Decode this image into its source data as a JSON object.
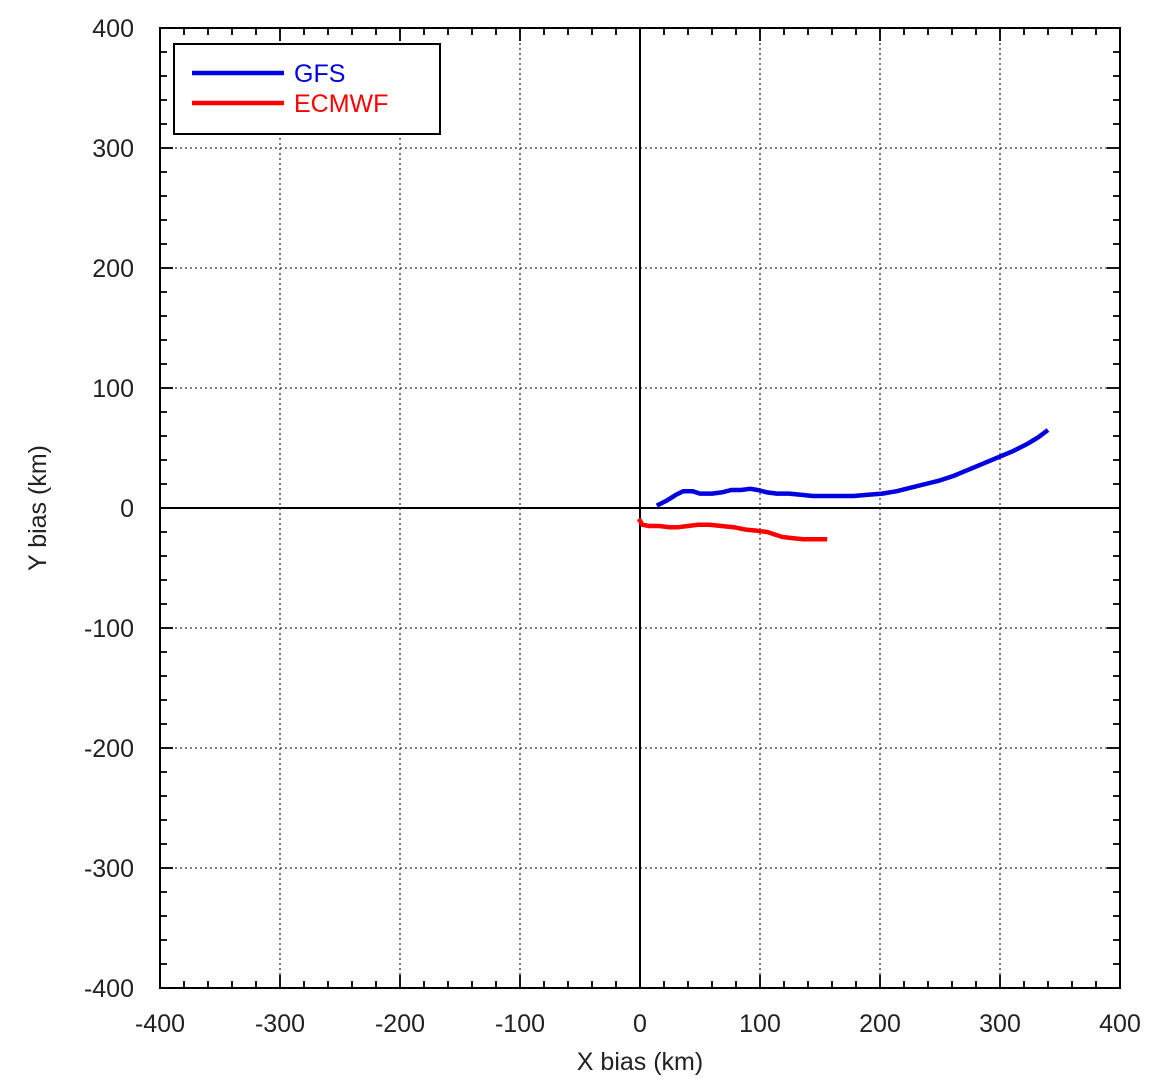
{
  "chart_data": {
    "type": "line",
    "title": "",
    "xlabel": "X bias (km)",
    "ylabel": "Y bias (km)",
    "xlim": [
      -400,
      400
    ],
    "ylim": [
      -400,
      400
    ],
    "xticks": [
      -400,
      -300,
      -200,
      -100,
      0,
      100,
      200,
      300,
      400
    ],
    "yticks": [
      -400,
      -300,
      -200,
      -100,
      0,
      100,
      200,
      300,
      400
    ],
    "xtick_labels": [
      "-400",
      "-300",
      "-200",
      "-100",
      "0",
      "100",
      "200",
      "300",
      "400"
    ],
    "ytick_labels": [
      "-400",
      "-300",
      "-200",
      "-100",
      "0",
      "100",
      "200",
      "300",
      "400"
    ],
    "grid": true,
    "grid_style": "dotted",
    "legend_position": "top-left",
    "series": [
      {
        "name": "GFS",
        "color": "#0000e0",
        "x": [
          14,
          22,
          30,
          36,
          44,
          50,
          60,
          68,
          76,
          84,
          92,
          98,
          106,
          114,
          124,
          134,
          144,
          154,
          166,
          178,
          190,
          202,
          214,
          226,
          238,
          250,
          262,
          274,
          286,
          298,
          310,
          322,
          332,
          340
        ],
        "y": [
          2,
          6,
          11,
          14,
          14,
          12,
          12,
          13,
          15,
          15,
          16,
          15,
          13,
          12,
          12,
          11,
          10,
          10,
          10,
          10,
          11,
          12,
          14,
          17,
          20,
          23,
          27,
          32,
          37,
          42,
          47,
          53,
          59,
          65
        ]
      },
      {
        "name": "ECMWF",
        "color": "#ff0000",
        "x": [
          -1,
          2,
          8,
          16,
          24,
          32,
          40,
          48,
          58,
          68,
          78,
          88,
          98,
          106,
          112,
          118,
          126,
          136,
          146,
          156
        ],
        "y": [
          -9,
          -14,
          -15,
          -15,
          -16,
          -16,
          -15,
          -14,
          -14,
          -15,
          -16,
          -18,
          -19,
          -20,
          -22,
          -24,
          -25,
          -26,
          -26,
          -26
        ]
      }
    ]
  }
}
